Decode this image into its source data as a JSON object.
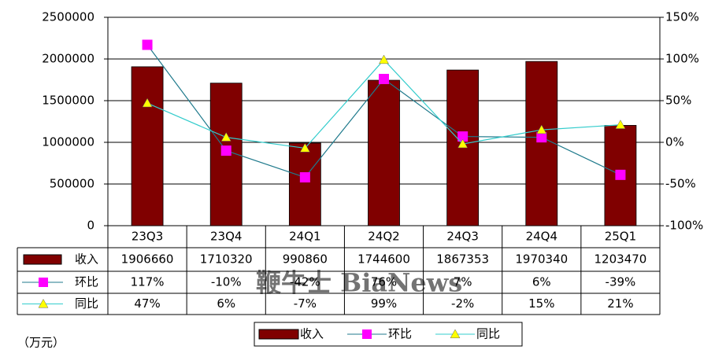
{
  "chart_data": {
    "type": "bar-line",
    "categories": [
      "23Q3",
      "23Q4",
      "24Q1",
      "24Q2",
      "24Q3",
      "24Q4",
      "25Q1"
    ],
    "series": [
      {
        "name": "收入",
        "type": "bar",
        "color": "#800000",
        "values": [
          1906660,
          1710320,
          990860,
          1744600,
          1867353,
          1970340,
          1203470
        ]
      },
      {
        "name": "环比",
        "type": "line",
        "axis": "y2",
        "color": "#1f7a8c",
        "marker": "square",
        "marker_color": "#ff00ff",
        "values": [
          117,
          -10,
          -42,
          76,
          7,
          6,
          -39
        ],
        "value_labels": [
          "117%",
          "-10%",
          "-42%",
          "76%",
          "7%",
          "6%",
          "-39%"
        ]
      },
      {
        "name": "同比",
        "type": "line",
        "axis": "y2",
        "color": "#33cccc",
        "marker": "triangle",
        "marker_color": "#ffff00",
        "values": [
          47,
          6,
          -7,
          99,
          -2,
          15,
          21
        ],
        "value_labels": [
          "47%",
          "6%",
          "-7%",
          "99%",
          "-2%",
          "15%",
          "21%"
        ]
      }
    ],
    "ylim": [
      0,
      2500000
    ],
    "yticks": [
      0,
      500000,
      1000000,
      1500000,
      2000000,
      2500000
    ],
    "y2lim": [
      -100,
      150
    ],
    "y2ticks": [
      {
        "value": -100,
        "label": "-100%"
      },
      {
        "value": -50,
        "label": "-50%"
      },
      {
        "value": 0,
        "label": "0%"
      },
      {
        "value": 50,
        "label": "50%"
      },
      {
        "value": 100,
        "label": "100%"
      },
      {
        "value": 150,
        "label": "150%"
      }
    ],
    "grid": true,
    "unit_label": "（万元）",
    "watermark": "鞭牛士 BiaNews"
  }
}
